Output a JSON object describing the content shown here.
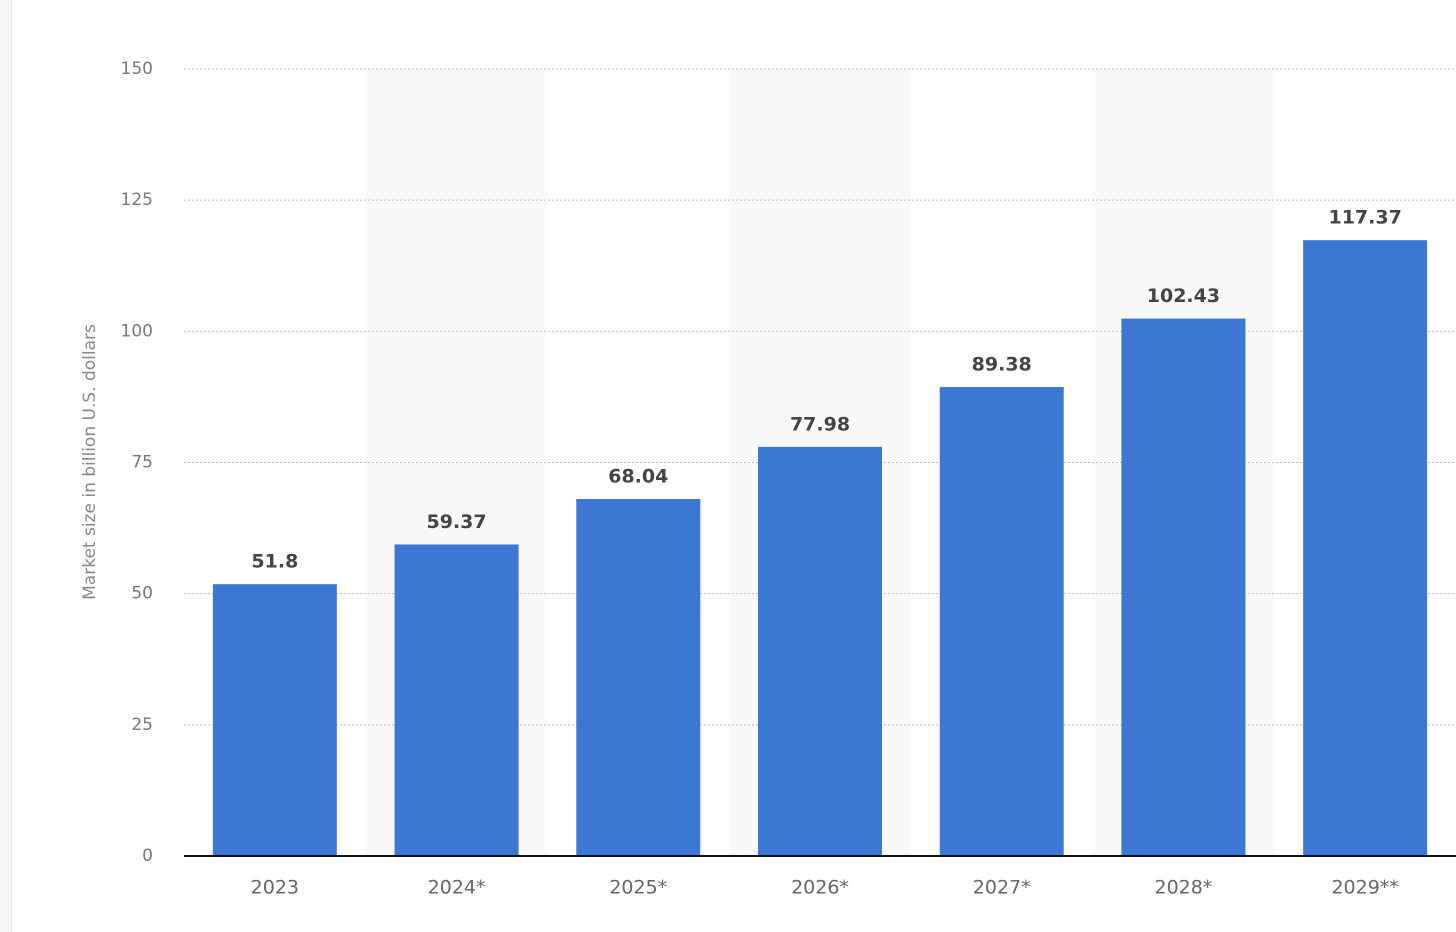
{
  "chart_data": {
    "type": "bar",
    "y_axis_label": "Market size in billion U.S. dollars",
    "categories": [
      "2023",
      "2024*",
      "2025*",
      "2026*",
      "2027*",
      "2028*",
      "2029**"
    ],
    "values": [
      51.8,
      59.37,
      68.04,
      77.98,
      89.38,
      102.43,
      117.37
    ],
    "color": "#3c77d4",
    "ylim": [
      0,
      150
    ],
    "yticks": [
      0,
      25,
      50,
      75,
      100,
      125,
      150
    ],
    "grid": true
  }
}
